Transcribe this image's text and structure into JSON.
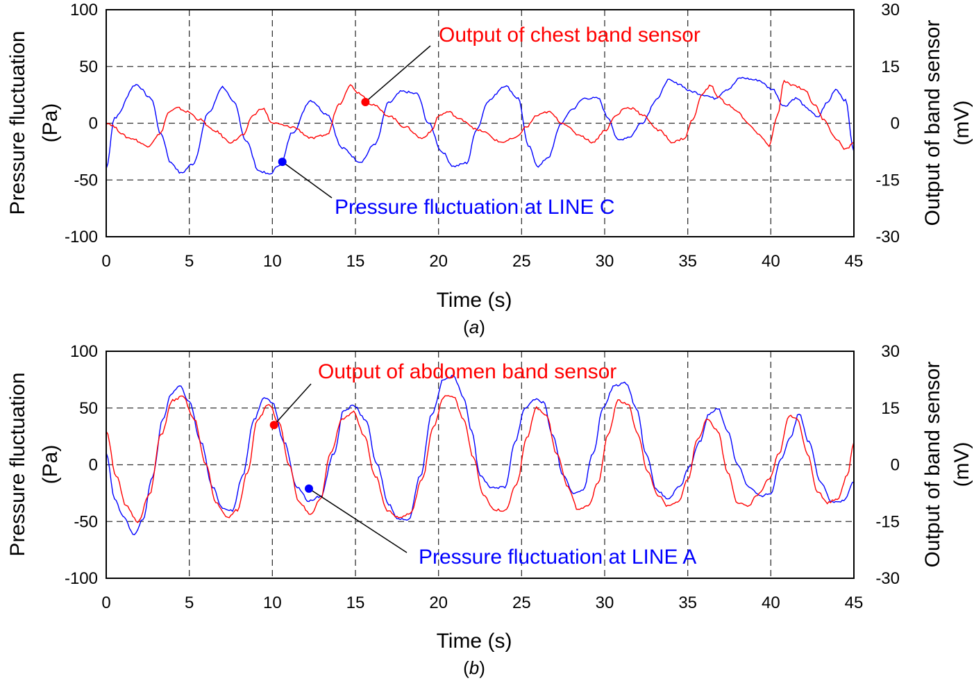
{
  "chart_data": [
    {
      "type": "line",
      "panel_label": "a",
      "xlabel": "Time (s)",
      "ylabel_left": [
        "Pressure fluctuation",
        "(Pa)"
      ],
      "ylabel_right": [
        "Output of band sensor",
        "(mV)"
      ],
      "xlim": [
        0,
        45
      ],
      "ylim_left": [
        -100,
        100
      ],
      "ylim_right": [
        -30,
        30
      ],
      "xticks": [
        0,
        5,
        10,
        15,
        20,
        25,
        30,
        35,
        40,
        45
      ],
      "yticks_left": [
        -100,
        -50,
        0,
        50,
        100
      ],
      "yticks_right": [
        -30,
        -15,
        0,
        15,
        30
      ],
      "grid": true,
      "series": [
        {
          "name": "Pressure fluctuation at LINE C",
          "axis": "left",
          "color": "#0000ff",
          "x": [
            0,
            0.5,
            1.8,
            2.7,
            3.3,
            3.9,
            4.5,
            5.2,
            6.2,
            7.0,
            7.7,
            8.4,
            9.2,
            9.8,
            10.5,
            11.2,
            12.3,
            13.3,
            14.2,
            15.3,
            16.2,
            17.0,
            17.8,
            18.7,
            19.4,
            20.2,
            20.9,
            21.7,
            22.3,
            23.0,
            24.0,
            24.8,
            25.4,
            26.0,
            26.6,
            27.4,
            28.0,
            28.8,
            29.6,
            30.2,
            30.8,
            31.5,
            32.2,
            33.2,
            33.8,
            34.4,
            35.2,
            36.0,
            36.6,
            37.4,
            38.2,
            39.2,
            40.1,
            40.8,
            41.5,
            42.3,
            42.8,
            43.4,
            43.9,
            44.5,
            45.0
          ],
          "y": [
            -40,
            5,
            34,
            22,
            -10,
            -35,
            -44,
            -36,
            10,
            32,
            18,
            -15,
            -42,
            -45,
            -36,
            -8,
            20,
            8,
            -22,
            -34,
            -18,
            18,
            28,
            26,
            0,
            -25,
            -38,
            -35,
            -5,
            20,
            33,
            22,
            -20,
            -38,
            -30,
            0,
            12,
            22,
            22,
            5,
            -15,
            -12,
            0,
            22,
            38,
            35,
            28,
            25,
            22,
            30,
            40,
            38,
            30,
            15,
            22,
            12,
            5,
            18,
            30,
            20,
            -25
          ]
        },
        {
          "name": "Output of chest band sensor",
          "axis": "right",
          "color": "#ff0000",
          "x": [
            0,
            1.5,
            2.5,
            3.2,
            3.8,
            4.3,
            4.9,
            5.6,
            6.5,
            7.5,
            8.3,
            8.8,
            9.4,
            10.0,
            11.2,
            12.4,
            13.3,
            14.0,
            14.7,
            15.2,
            16.0,
            17.0,
            18.0,
            19.0,
            19.6,
            20.0,
            20.6,
            21.3,
            22.5,
            23.8,
            24.6,
            25.3,
            25.9,
            26.6,
            27.5,
            28.4,
            29.3,
            30.0,
            30.7,
            31.2,
            31.7,
            32.3,
            33.3,
            34.1,
            34.8,
            35.3,
            35.9,
            36.4,
            36.8,
            37.4,
            38.0,
            38.6,
            39.3,
            39.9,
            40.4,
            40.8,
            41.4,
            42.0,
            42.6,
            43.2,
            43.9,
            44.5,
            45.0
          ],
          "y": [
            0,
            -4,
            -6,
            -3,
            3,
            4,
            3,
            1,
            -2,
            -5,
            -3,
            2,
            4,
            0,
            -1,
            -4,
            -3,
            5,
            10,
            8,
            5,
            2,
            -1,
            -4,
            -2,
            2,
            3,
            1,
            -2,
            -5,
            -4,
            -1,
            2,
            3,
            0,
            -3,
            -5,
            -2,
            2,
            4,
            4,
            2,
            -2,
            -5,
            -4,
            1,
            8,
            10,
            7,
            5,
            3,
            0,
            -3,
            -6,
            2,
            11,
            10,
            9,
            5,
            1,
            -4,
            -7,
            -5
          ]
        }
      ],
      "annotations": [
        {
          "text": "Output of chest band sensor",
          "color": "#ff0000",
          "x": 15.6,
          "y": 5.6,
          "axis": "right"
        },
        {
          "text": "Pressure fluctuation at LINE C",
          "color": "#0000ff",
          "x": 10.6,
          "y": -34,
          "axis": "left"
        }
      ],
      "caption": "a"
    },
    {
      "type": "line",
      "panel_label": "b",
      "xlabel": "Time (s)",
      "ylabel_left": [
        "Pressure fluctuation",
        "(Pa)"
      ],
      "ylabel_right": [
        "Output of band sensor",
        "(mV)"
      ],
      "xlim": [
        0,
        45
      ],
      "ylim_left": [
        -100,
        100
      ],
      "ylim_right": [
        -30,
        30
      ],
      "xticks": [
        0,
        5,
        10,
        15,
        20,
        25,
        30,
        35,
        40,
        45
      ],
      "yticks_left": [
        -100,
        -50,
        0,
        50,
        100
      ],
      "yticks_right": [
        -30,
        -15,
        0,
        15,
        30
      ],
      "grid": true,
      "series": [
        {
          "name": "Pressure fluctuation at LINE A",
          "axis": "left",
          "color": "#0000ff",
          "x": [
            0,
            0.5,
            1.0,
            1.7,
            2.2,
            2.8,
            3.4,
            3.9,
            4.4,
            5.0,
            5.7,
            6.4,
            7.0,
            7.6,
            8.2,
            8.9,
            9.5,
            10.0,
            10.7,
            11.5,
            12.2,
            12.9,
            13.7,
            14.3,
            14.9,
            15.6,
            16.3,
            17.0,
            17.6,
            18.2,
            18.9,
            19.6,
            20.3,
            20.9,
            21.5,
            22.0,
            22.5,
            23.2,
            24.0,
            24.6,
            25.2,
            25.8,
            26.3,
            26.9,
            27.5,
            28.1,
            28.7,
            29.3,
            29.9,
            30.6,
            31.3,
            31.9,
            32.5,
            33.1,
            33.8,
            34.5,
            35.1,
            35.7,
            36.3,
            36.8,
            37.4,
            38.0,
            38.7,
            39.4,
            40.0,
            40.6,
            41.2,
            41.7,
            42.3,
            43.0,
            43.7,
            44.4,
            45.0
          ],
          "y": [
            10,
            -30,
            -45,
            -62,
            -48,
            -10,
            40,
            62,
            70,
            55,
            20,
            -20,
            -38,
            -40,
            -10,
            40,
            60,
            55,
            20,
            -20,
            -32,
            -28,
            10,
            48,
            52,
            40,
            0,
            -35,
            -48,
            -48,
            -10,
            45,
            75,
            78,
            60,
            30,
            -10,
            -20,
            -20,
            20,
            50,
            58,
            55,
            25,
            -10,
            -25,
            -22,
            10,
            50,
            70,
            72,
            50,
            10,
            -22,
            -30,
            -20,
            -2,
            20,
            45,
            50,
            30,
            0,
            -20,
            -28,
            -25,
            5,
            25,
            45,
            20,
            -15,
            -33,
            -32,
            -15
          ]
        },
        {
          "name": "Output of abdomen band sensor",
          "axis": "right",
          "color": "#ff0000",
          "x": [
            0,
            0.6,
            1.2,
            1.9,
            2.6,
            3.3,
            4.0,
            4.6,
            5.3,
            6.0,
            6.6,
            7.3,
            7.9,
            8.5,
            9.1,
            9.8,
            10.4,
            11.0,
            11.6,
            12.3,
            12.9,
            13.5,
            14.2,
            14.9,
            15.5,
            16.2,
            16.9,
            17.6,
            18.3,
            19.0,
            19.7,
            20.3,
            20.9,
            21.5,
            22.1,
            22.7,
            23.4,
            24.0,
            24.7,
            25.3,
            25.9,
            26.5,
            27.1,
            27.8,
            28.4,
            29.0,
            29.6,
            30.2,
            30.8,
            31.4,
            32.0,
            32.6,
            33.2,
            33.8,
            34.4,
            35.0,
            35.6,
            36.2,
            36.8,
            37.4,
            38.0,
            38.6,
            39.2,
            39.9,
            40.5,
            41.1,
            41.6,
            42.2,
            42.8,
            43.4,
            44.0,
            44.6,
            45.0
          ],
          "y": [
            9,
            -3,
            -11,
            -15,
            -8,
            8,
            17,
            18,
            12,
            0,
            -10,
            -14,
            -12,
            -2,
            12,
            16,
            11,
            0,
            -10,
            -13,
            -9,
            3,
            12,
            14,
            8,
            -3,
            -12,
            -14,
            -13,
            -4,
            10,
            18,
            18,
            12,
            2,
            -8,
            -12,
            -12,
            -5,
            7,
            15,
            13,
            3,
            -6,
            -12,
            -11,
            -5,
            8,
            17,
            16,
            8,
            -2,
            -8,
            -11,
            -10,
            -4,
            7,
            12,
            9,
            -2,
            -10,
            -11,
            -8,
            -4,
            3,
            13,
            12,
            3,
            -7,
            -10,
            -9,
            -3,
            6
          ]
        }
      ],
      "annotations": [
        {
          "text": "Output of abdomen band sensor",
          "color": "#ff0000",
          "x": 10.1,
          "y": 10.5,
          "axis": "right"
        },
        {
          "text": "Pressure fluctuation at LINE A",
          "color": "#0000ff",
          "x": 12.2,
          "y": -21,
          "axis": "left"
        }
      ],
      "caption": "b"
    }
  ]
}
